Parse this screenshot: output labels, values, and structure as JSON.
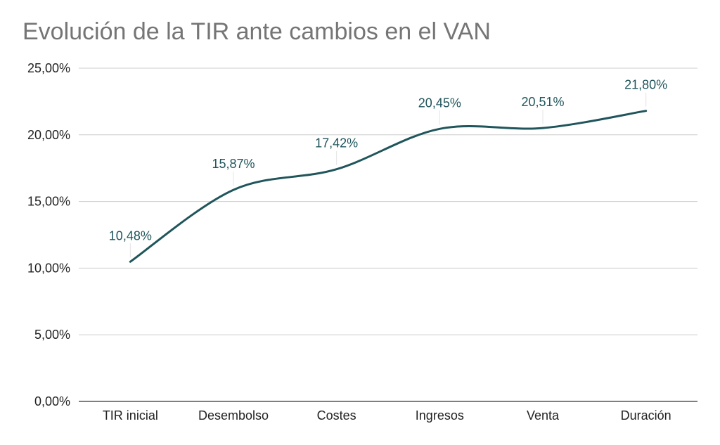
{
  "chart_data": {
    "type": "line",
    "title": "Evolución de la TIR ante cambios en el VAN",
    "xlabel": "",
    "ylabel": "",
    "categories": [
      "TIR inicial",
      "Desembolso",
      "Costes",
      "Ingresos",
      "Venta",
      "Duración"
    ],
    "series": [
      {
        "values": [
          10.48,
          15.87,
          17.42,
          20.45,
          20.51,
          21.8
        ],
        "data_labels": [
          "10,48%",
          "15,87%",
          "17,42%",
          "20,45%",
          "20,51%",
          "21,80%"
        ]
      }
    ],
    "ylim": [
      0,
      25
    ],
    "y_ticks": [
      0,
      5,
      10,
      15,
      20,
      25
    ],
    "y_tick_labels": [
      "0,00%",
      "5,00%",
      "10,00%",
      "15,00%",
      "20,00%",
      "25,00%"
    ],
    "grid": true,
    "smooth": true,
    "legend": "none"
  },
  "colors": {
    "line": "#1f555b",
    "label": "#1f555b",
    "grid": "#cccccc",
    "axis": "#333333",
    "title": "#757575"
  }
}
